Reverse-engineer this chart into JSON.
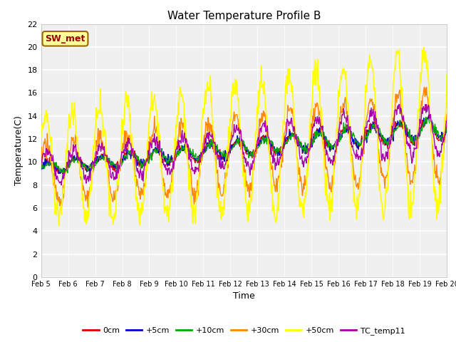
{
  "title": "Water Temperature Profile B",
  "xlabel": "Time",
  "ylabel": "Temperature(C)",
  "ylim": [
    0,
    22
  ],
  "yticks": [
    0,
    2,
    4,
    6,
    8,
    10,
    12,
    14,
    16,
    18,
    20,
    22
  ],
  "xtick_labels": [
    "Feb 5",
    "Feb 6",
    "Feb 7",
    "Feb 8",
    "Feb 9",
    "Feb 10",
    "Feb 11",
    "Feb 12",
    "Feb 13",
    "Feb 14",
    "Feb 15",
    "Feb 16",
    "Feb 17",
    "Feb 18",
    "Feb 19",
    "Feb 20"
  ],
  "bg_outer": "#ffffff",
  "bg_plot": "#f0f0f0",
  "grid_color": "#ffffff",
  "annotation_text": "SW_met",
  "annotation_color": "#990000",
  "annotation_bg": "#ffff99",
  "annotation_border": "#996600",
  "series_order": [
    "0cm",
    "+5cm",
    "+10cm",
    "+30cm",
    "+50cm",
    "TC_temp11"
  ],
  "series_colors": {
    "0cm": "#dd0000",
    "+5cm": "#0000cc",
    "+10cm": "#00aa00",
    "+30cm": "#ff8800",
    "+50cm": "#ffff00",
    "TC_temp11": "#aa00aa"
  },
  "series_lw": {
    "0cm": 1.0,
    "+5cm": 1.0,
    "+10cm": 1.0,
    "+30cm": 1.0,
    "+50cm": 1.2,
    "TC_temp11": 1.0
  }
}
